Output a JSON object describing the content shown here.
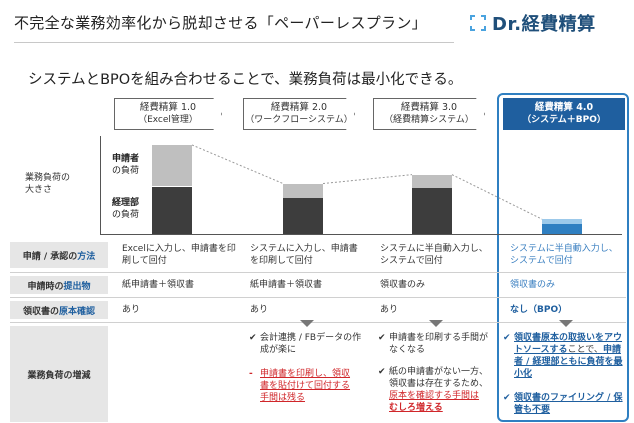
{
  "title": "不完全な業務効率化から脱却させる「ペーパーレスプラン」",
  "logo": {
    "text": "Dr.経費精算",
    "icon": "bracket-logo-icon"
  },
  "subtitle": "システムとBPOを組み合わせることで、業務負荷は最小化できる。",
  "versions": [
    {
      "name": "経費精算 1.0",
      "sub": "（Excel管理）"
    },
    {
      "name": "経費精算 2.0",
      "sub": "（ワークフローシステム）"
    },
    {
      "name": "経費精算 3.0",
      "sub": "（経費精算システム）"
    },
    {
      "name": "経費精算 4.0",
      "sub": "（システム＋BPO）"
    }
  ],
  "chart_data": {
    "type": "bar",
    "ylabel": "業務負荷の大きさ",
    "categories": [
      "経費精算 1.0",
      "経費精算 2.0",
      "経費精算 3.0",
      "経費精算 4.0"
    ],
    "series": [
      {
        "name": "申請者の負荷",
        "color": "#bfbfbf",
        "values": [
          4.2,
          1.5,
          1.4,
          0.5
        ]
      },
      {
        "name": "経理部の負荷",
        "color": "#3d3d3d",
        "values": [
          4.8,
          3.6,
          4.6,
          1.0
        ]
      }
    ],
    "series_4_0_colors": [
      "#9cc9ea",
      "#2f7fc1"
    ],
    "ylim": [
      0,
      9.5
    ]
  },
  "bar_labels": {
    "applicant": {
      "strong": "申請者",
      "rest": "の負荷"
    },
    "accounting": {
      "strong": "経理部",
      "rest": "の負荷"
    }
  },
  "rows": [
    {
      "label_pre": "申請 / 承認の",
      "label_hl": "方法",
      "cells": [
        "Excelに入力し、申請書を印刷して回付",
        "システムに入力し、申請書を印刷して回付",
        "システムに半自動入力し、システムで回付",
        "システムに半自動入力し、システムで回付"
      ]
    },
    {
      "label_pre": "申請時の",
      "label_hl": "提出物",
      "cells": [
        "紙申請書＋領収書",
        "紙申請書＋領収書",
        "領収書のみ",
        "領収書のみ"
      ]
    },
    {
      "label_pre": "領収書の",
      "label_hl": "原本確認",
      "cells": [
        "あり",
        "あり",
        "あり",
        "なし（BPO）"
      ]
    }
  ],
  "load_row_label": "業務負荷の増減",
  "load_v2": {
    "good": "会計連携 / FBデータの作成が楽に",
    "bad": "申請書を印刷し、領収書を貼付けて回付する手間は残る"
  },
  "load_v3": {
    "good1": "申請書を印刷する手間がなくなる",
    "mixed_pre": "紙の申請書がない一方、領収書は存在するため、",
    "mixed_bad": "原本を確認する手間は",
    "mixed_bad_bold": "むしろ増える"
  },
  "load_v4": {
    "b1_hl": "領収書原本の取扱いをアウトソースする",
    "b1_rest": "ことで、",
    "b1_hl2": "申請者 / 経理部ともに負荷を最小化",
    "b2": "領収書のファイリング / 保管も不要"
  },
  "marks": {
    "check": "✔"
  }
}
